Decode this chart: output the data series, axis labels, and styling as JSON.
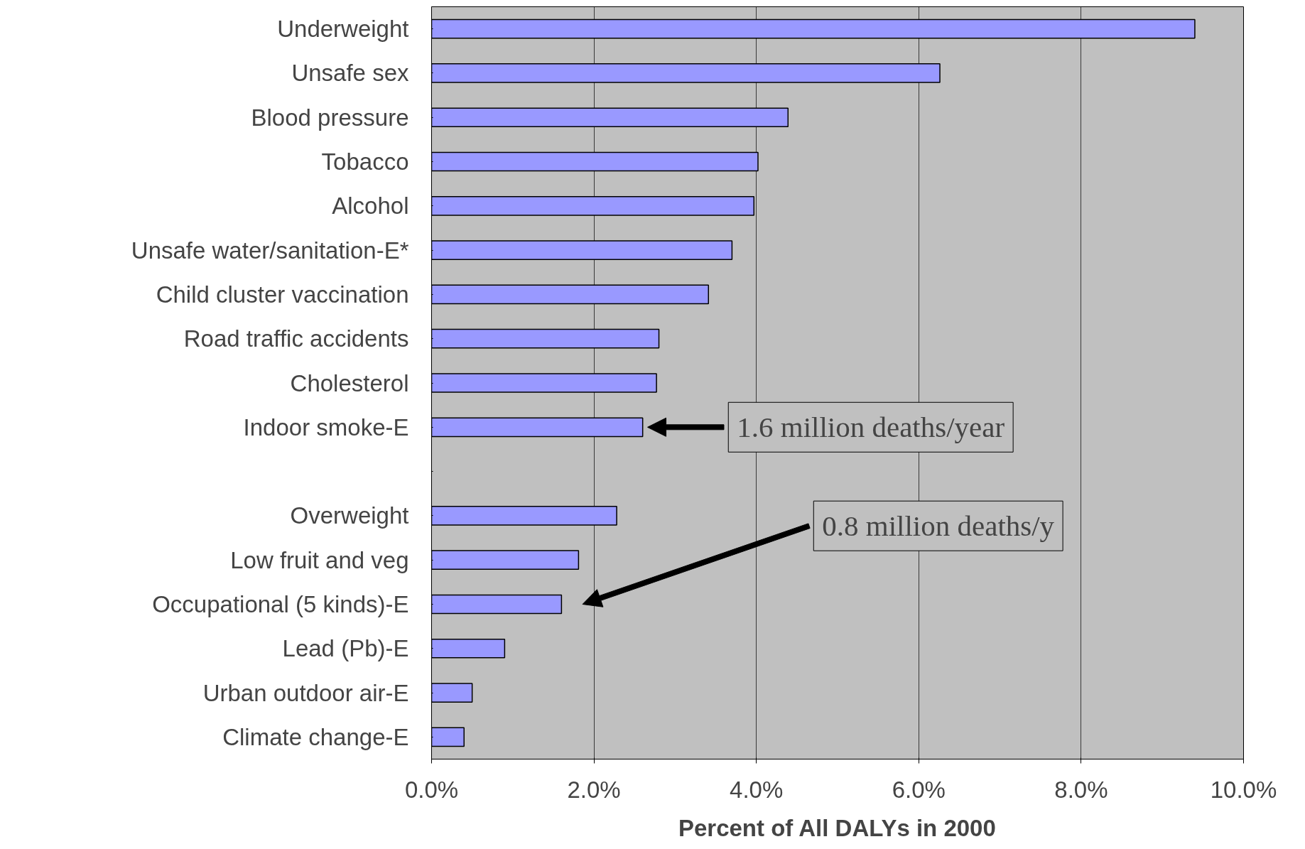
{
  "chart_data": {
    "type": "bar",
    "orientation": "horizontal",
    "xlabel": "Percent of All DALYs in 2000",
    "categories": [
      "Underweight",
      "Unsafe sex",
      "Blood pressure",
      "Tobacco",
      "Alcohol",
      "Unsafe water/sanitation-E*",
      "Child cluster vaccination",
      "Road traffic accidents",
      "Cholesterol",
      "Indoor smoke-E",
      null,
      "Overweight",
      "Low fruit and veg",
      "Occupational (5 kinds)-E",
      "Lead (Pb)-E",
      "Urban outdoor air-E",
      "Climate change-E"
    ],
    "values": [
      9.4,
      6.26,
      4.39,
      4.02,
      3.97,
      3.7,
      3.41,
      2.8,
      2.77,
      2.6,
      null,
      2.28,
      1.81,
      1.6,
      0.9,
      0.5,
      0.4
    ],
    "color": "#9999ff",
    "xlim": [
      0,
      10
    ],
    "xticks": [
      {
        "value": 0,
        "label": "0.0%"
      },
      {
        "value": 2,
        "label": "2.0%"
      },
      {
        "value": 4,
        "label": "4.0%"
      },
      {
        "value": 6,
        "label": "6.0%"
      },
      {
        "value": 8,
        "label": "8.0%"
      },
      {
        "value": 10,
        "label": "10.0%"
      }
    ],
    "grid": "x",
    "annotations": [
      "1.6 million deaths/year",
      "0.8 million deaths/y"
    ]
  }
}
